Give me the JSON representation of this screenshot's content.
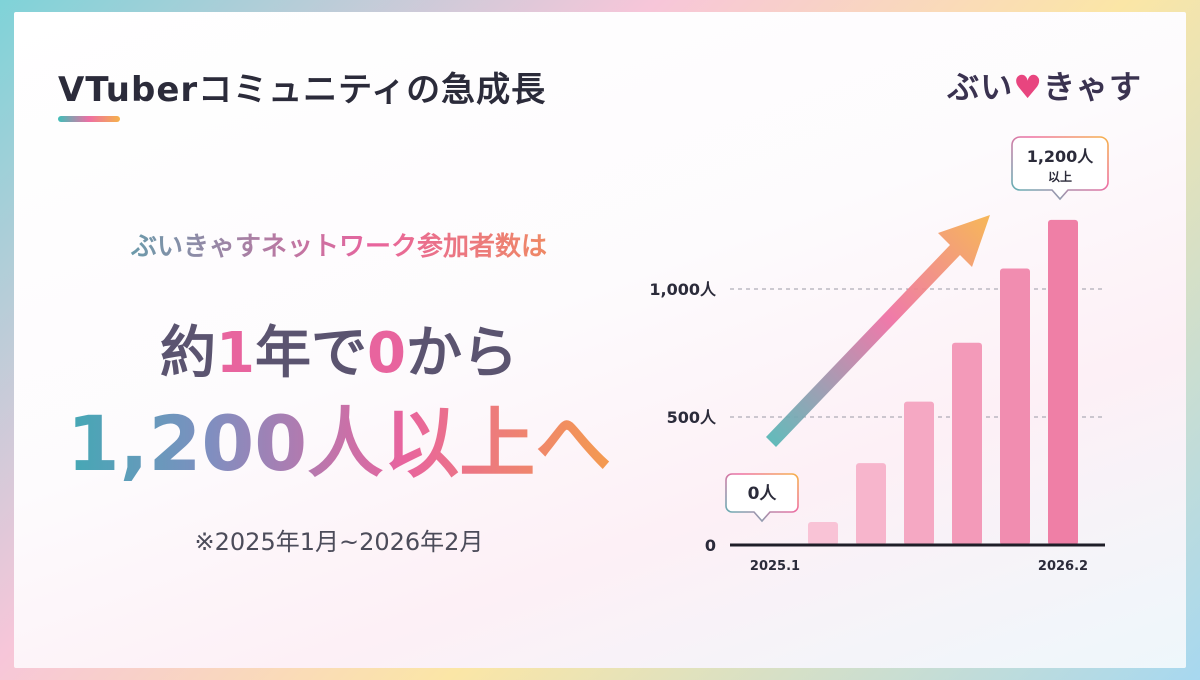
{
  "header": {
    "title": "VTuberコミュニティの急成長",
    "logo_text": "ぶいきゃす",
    "logo_heart": "♥"
  },
  "main": {
    "lead": "ぶいきゃすネットワーク参加者数は",
    "headline_line1": {
      "p1": "約",
      "p2": "1",
      "p3": "年で",
      "p4": "0",
      "p5": "から"
    },
    "headline_line2": "1,200人以上へ",
    "note": "※2025年1月~2026年2月"
  },
  "colors": {
    "bar_light": "#fbd0df",
    "bar_dark": "#ef7fa6",
    "text_dark": "#2b2b3a",
    "teal": "#3fbfb8",
    "pink": "#e8649e",
    "orange": "#f6b24a"
  },
  "chart_data": {
    "type": "bar",
    "title": "",
    "xlabel": "",
    "ylabel": "",
    "ylim": [
      0,
      1250
    ],
    "grid": true,
    "y_ticks": [
      {
        "value": 0,
        "label": "0"
      },
      {
        "value": 500,
        "label": "500人"
      },
      {
        "value": 1000,
        "label": "1,000人"
      }
    ],
    "x_labels": {
      "first": "2025.1",
      "last": "2026.2"
    },
    "values": [
      0,
      90,
      320,
      560,
      790,
      1080,
      1270
    ],
    "callouts": {
      "start": "0人",
      "end_main": "1,200人",
      "end_sub": "以上"
    }
  }
}
